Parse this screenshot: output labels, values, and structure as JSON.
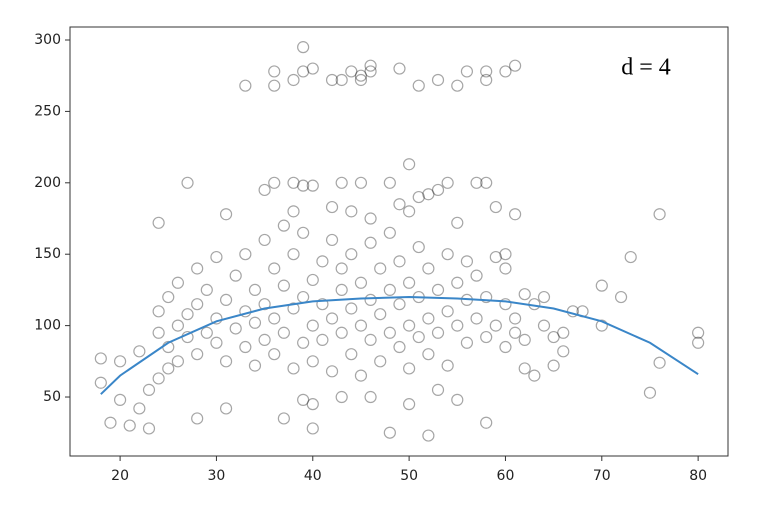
{
  "chart_data": {
    "type": "scatter",
    "annotation": "d = 4",
    "xlim": [
      14.8,
      83.1
    ],
    "ylim": [
      8.7,
      309.1
    ],
    "xticks": [
      20,
      30,
      40,
      50,
      60,
      70,
      80
    ],
    "yticks": [
      50,
      100,
      150,
      200,
      250,
      300
    ],
    "grid": false,
    "points": {
      "color": "rgba(0,0,0,0.35)",
      "x": [
        33,
        36,
        36,
        38,
        39,
        39,
        40,
        42,
        43,
        44,
        45,
        45,
        46,
        46,
        49,
        51,
        53,
        55,
        56,
        58,
        58,
        60,
        61,
        27,
        35,
        36,
        38,
        39,
        40,
        43,
        45,
        48,
        50,
        51,
        52,
        53,
        54,
        57,
        58,
        59,
        61,
        24,
        31,
        38,
        42,
        44,
        46,
        49,
        50,
        55,
        76,
        73,
        70,
        72,
        75,
        76,
        80,
        80,
        18,
        18,
        19,
        20,
        20,
        21,
        22,
        22,
        23,
        23,
        24,
        25,
        26,
        28,
        31,
        37,
        39,
        40,
        40,
        43,
        46,
        48,
        50,
        52,
        53,
        55,
        58,
        63,
        62,
        65,
        66,
        65,
        68,
        64,
        62,
        60,
        60,
        24,
        24,
        25,
        25,
        26,
        26,
        27,
        27,
        28,
        28,
        28,
        29,
        29,
        30,
        30,
        30,
        31,
        31,
        32,
        32,
        33,
        33,
        33,
        34,
        34,
        34,
        35,
        35,
        35,
        36,
        36,
        36,
        37,
        37,
        37,
        38,
        38,
        38,
        39,
        39,
        39,
        40,
        40,
        40,
        41,
        41,
        41,
        42,
        42,
        42,
        43,
        43,
        43,
        44,
        44,
        44,
        45,
        45,
        45,
        46,
        46,
        46,
        47,
        47,
        47,
        48,
        48,
        48,
        49,
        49,
        49,
        50,
        50,
        50,
        51,
        51,
        51,
        52,
        52,
        52,
        53,
        53,
        54,
        54,
        54,
        55,
        55,
        56,
        56,
        56,
        57,
        57,
        58,
        58,
        59,
        59,
        60,
        60,
        61,
        61,
        62,
        63,
        64,
        66,
        67,
        70
      ],
      "y": [
        268,
        268,
        278,
        272,
        278,
        295,
        280,
        272,
        272,
        278,
        272,
        275,
        282,
        278,
        280,
        268,
        272,
        268,
        278,
        272,
        278,
        278,
        282,
        200,
        195,
        200,
        200,
        198,
        198,
        200,
        200,
        200,
        213,
        190,
        192,
        195,
        200,
        200,
        200,
        183,
        178,
        172,
        178,
        180,
        183,
        180,
        175,
        185,
        180,
        172,
        178,
        148,
        128,
        120,
        53,
        74,
        95,
        88,
        77,
        60,
        32,
        75,
        48,
        30,
        42,
        82,
        28,
        55,
        63,
        70,
        75,
        35,
        42,
        35,
        48,
        28,
        45,
        50,
        50,
        25,
        45,
        23,
        55,
        48,
        32,
        65,
        70,
        72,
        82,
        92,
        110,
        120,
        122,
        140,
        150,
        95,
        110,
        85,
        120,
        100,
        130,
        92,
        108,
        80,
        115,
        140,
        95,
        125,
        88,
        105,
        148,
        75,
        118,
        98,
        135,
        85,
        110,
        150,
        72,
        102,
        125,
        90,
        115,
        160,
        80,
        105,
        140,
        95,
        128,
        170,
        70,
        112,
        150,
        88,
        120,
        165,
        100,
        132,
        75,
        115,
        145,
        90,
        68,
        105,
        160,
        95,
        125,
        140,
        80,
        112,
        150,
        100,
        130,
        65,
        90,
        118,
        158,
        108,
        140,
        75,
        95,
        125,
        165,
        85,
        115,
        145,
        100,
        130,
        70,
        92,
        120,
        155,
        105,
        140,
        80,
        95,
        125,
        110,
        150,
        72,
        100,
        130,
        88,
        118,
        145,
        105,
        135,
        92,
        120,
        100,
        148,
        85,
        115,
        105,
        95,
        90,
        115,
        100,
        95,
        110,
        100
      ]
    },
    "fit": {
      "color": "#3a86c8",
      "x": [
        18,
        20,
        25,
        30,
        35,
        40,
        45,
        50,
        55,
        60,
        65,
        70,
        75,
        80
      ],
      "y": [
        52,
        65,
        88,
        103,
        112,
        117,
        119,
        120,
        119,
        117,
        112,
        103,
        88,
        66
      ]
    }
  }
}
